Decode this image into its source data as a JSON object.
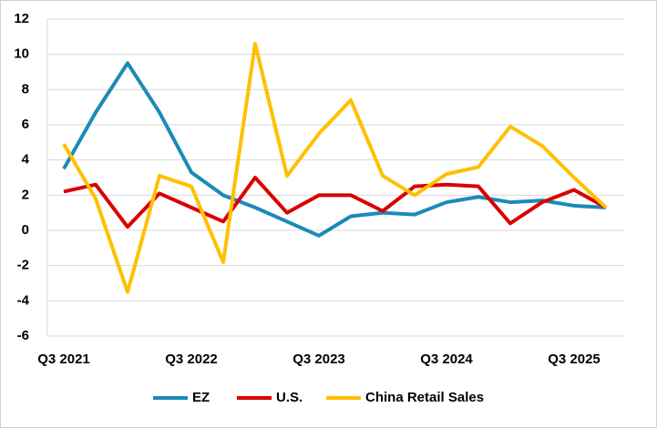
{
  "chart_data": {
    "type": "line",
    "categories": [
      "Q3 2021",
      null,
      null,
      null,
      "Q3 2022",
      null,
      null,
      null,
      "Q3 2023",
      null,
      null,
      null,
      "Q3 2024",
      null,
      null,
      null,
      "Q3 2025",
      null
    ],
    "series": [
      {
        "name": "EZ",
        "color": "#1b8ab8",
        "values": [
          3.5,
          6.7,
          9.5,
          6.7,
          3.3,
          2.0,
          1.3,
          0.5,
          -0.3,
          0.8,
          1.0,
          0.9,
          1.6,
          1.9,
          1.6,
          1.7,
          1.4,
          1.3
        ]
      },
      {
        "name": "U.S.",
        "color": "#d90000",
        "values": [
          2.2,
          2.6,
          0.2,
          2.1,
          1.3,
          0.5,
          3.0,
          1.0,
          2.0,
          2.0,
          1.1,
          2.5,
          2.6,
          2.5,
          0.4,
          1.6,
          2.3,
          1.3
        ]
      },
      {
        "name": "China Retail Sales",
        "color": "#ffc000",
        "values": [
          4.9,
          1.8,
          -3.5,
          3.1,
          2.5,
          -1.8,
          10.6,
          3.1,
          5.5,
          7.4,
          3.1,
          2.0,
          3.2,
          3.6,
          5.9,
          4.8,
          3.0,
          1.3
        ]
      }
    ],
    "ylim": [
      -6,
      12
    ],
    "yticks": [
      -6,
      -4,
      -2,
      0,
      2,
      4,
      6,
      8,
      10,
      12
    ],
    "grid": true,
    "legend": "bottom"
  }
}
